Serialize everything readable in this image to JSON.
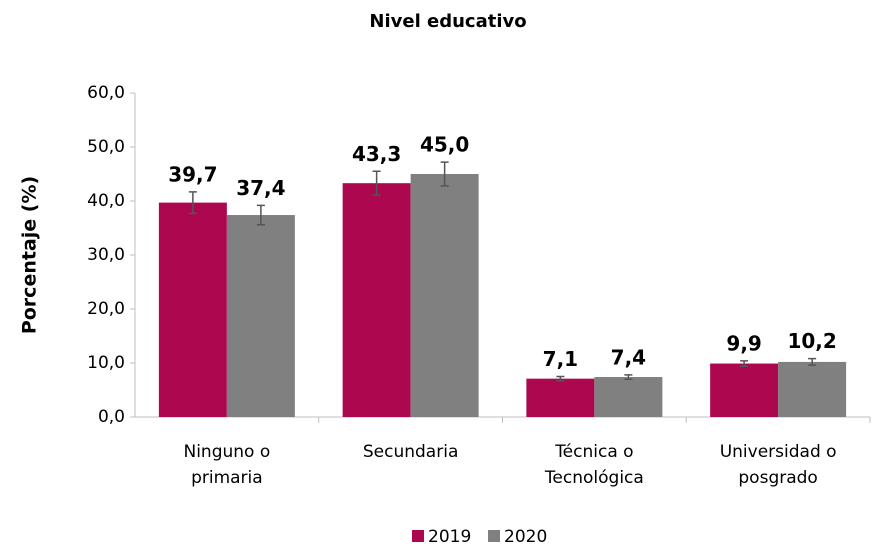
{
  "chart_data": {
    "type": "bar",
    "title": "Nivel educativo",
    "ylabel": "Porcentaje (%)",
    "categories": [
      "Ninguno o primaria",
      "Secundaria",
      "Técnica o Tecnológica",
      "Universidad o posgrado"
    ],
    "series": [
      {
        "name": "2019",
        "color": "#ad0750",
        "values": [
          39.7,
          43.3,
          7.1,
          9.9
        ],
        "value_labels": [
          "39,7",
          "43,3",
          "7,1",
          "9,9"
        ],
        "errors": [
          2.0,
          2.2,
          0.4,
          0.5
        ]
      },
      {
        "name": "2020",
        "color": "#808080",
        "values": [
          37.4,
          45.0,
          7.4,
          10.2
        ],
        "value_labels": [
          "37,4",
          "45,0",
          "7,4",
          "10,2"
        ],
        "errors": [
          1.8,
          2.2,
          0.4,
          0.6
        ]
      }
    ],
    "ylim": [
      0,
      60
    ],
    "yticks": [
      {
        "value": 0,
        "label": "0,0"
      },
      {
        "value": 10,
        "label": "10,0"
      },
      {
        "value": 20,
        "label": "20,0"
      },
      {
        "value": 30,
        "label": "30,0"
      },
      {
        "value": 40,
        "label": "40,0"
      },
      {
        "value": 50,
        "label": "50,0"
      },
      {
        "value": 60,
        "label": "60,0"
      }
    ],
    "legend": "bottom"
  }
}
